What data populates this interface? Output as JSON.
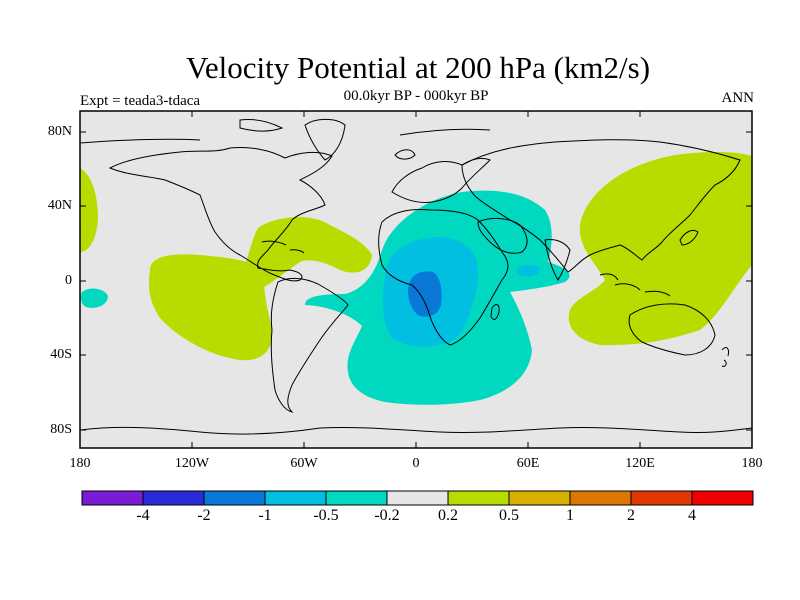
{
  "header": {
    "title": "Velocity Potential at 200 hPa (km2/s)",
    "subtitle": "00.0kyr BP - 000kyr BP",
    "left_label": "Expt = teada3-tdaca",
    "right_label": "ANN"
  },
  "axes": {
    "y_ticks": [
      "80N",
      "40N",
      "0",
      "40S",
      "80S"
    ],
    "x_ticks": [
      "180",
      "120W",
      "60W",
      "0",
      "60E",
      "120E",
      "180"
    ]
  },
  "colorbar": {
    "labels": [
      "-4",
      "-2",
      "-1",
      "-0.5",
      "-0.2",
      "0.2",
      "0.5",
      "1",
      "2",
      "4"
    ],
    "colors": [
      "#7a1bd6",
      "#2a2ad8",
      "#0a78d8",
      "#00bfe0",
      "#00d9c0",
      "#e6e6e6",
      "#b8dc00",
      "#d8b000",
      "#dc7800",
      "#e03800",
      "#f00000"
    ]
  },
  "map": {
    "background_color": "#e6e6e6",
    "coastline_color": "#000000"
  }
}
